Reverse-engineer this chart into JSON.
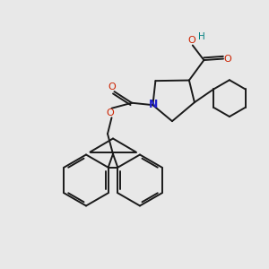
{
  "background_color": "#e8e8e8",
  "bond_color": "#1a1a1a",
  "N_color": "#2222cc",
  "O_color": "#cc2200",
  "OH_color": "#008080",
  "figsize": [
    3.0,
    3.0
  ],
  "dpi": 100,
  "xlim": [
    0,
    10
  ],
  "ylim": [
    0,
    10
  ]
}
